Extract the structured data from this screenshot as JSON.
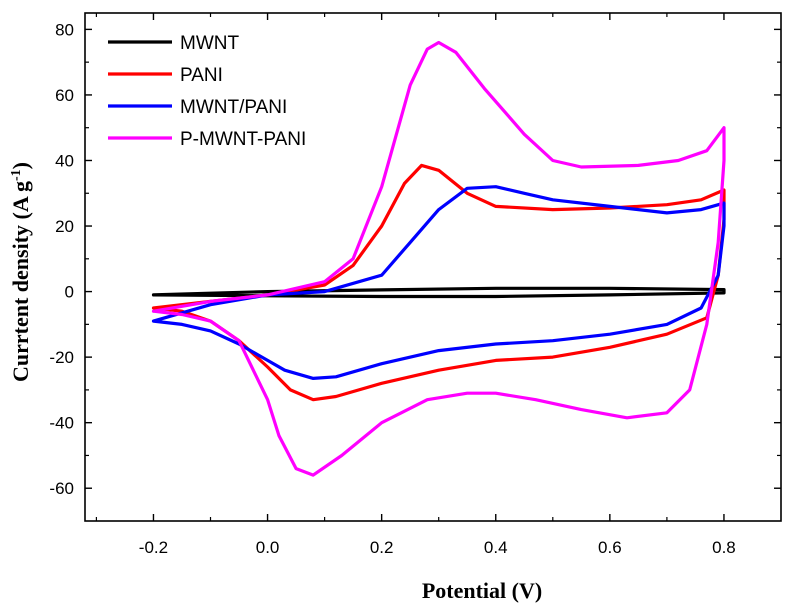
{
  "chart_data": {
    "type": "line",
    "title": "",
    "xlabel": "Potential (V)",
    "ylabel_main": "Currtent density (A g",
    "ylabel_sup": "-1",
    "ylabel_close": ")",
    "xlim": [
      -0.32,
      0.9
    ],
    "ylim": [
      -70,
      85
    ],
    "xticks": [
      -0.2,
      0.0,
      0.2,
      0.4,
      0.6,
      0.8
    ],
    "xtick_labels": [
      "-0.2",
      "0.0",
      "0.2",
      "0.4",
      "0.6",
      "0.8"
    ],
    "yticks": [
      -60,
      -40,
      -20,
      0,
      20,
      40,
      60,
      80
    ],
    "ytick_labels": [
      "-60",
      "-40",
      "-20",
      "0",
      "20",
      "40",
      "60",
      "80"
    ],
    "grid": false,
    "legend_position": "top-left",
    "series": [
      {
        "name": "MWNT",
        "color": "#000000",
        "points": [
          [
            -0.2,
            -1
          ],
          [
            -0.1,
            -0.5
          ],
          [
            0.0,
            0
          ],
          [
            0.2,
            0.5
          ],
          [
            0.4,
            1
          ],
          [
            0.6,
            1
          ],
          [
            0.8,
            0.6
          ],
          [
            0.8,
            -0.4
          ],
          [
            0.6,
            -1
          ],
          [
            0.4,
            -1.5
          ],
          [
            0.2,
            -1.5
          ],
          [
            0.0,
            -1.3
          ],
          [
            -0.2,
            -1
          ]
        ]
      },
      {
        "name": "PANI",
        "color": "#ff0000",
        "points": [
          [
            -0.2,
            -5
          ],
          [
            -0.1,
            -3
          ],
          [
            0.0,
            -1
          ],
          [
            0.1,
            2
          ],
          [
            0.15,
            8
          ],
          [
            0.2,
            20
          ],
          [
            0.24,
            33
          ],
          [
            0.27,
            38.5
          ],
          [
            0.3,
            37
          ],
          [
            0.35,
            30
          ],
          [
            0.4,
            26
          ],
          [
            0.5,
            25
          ],
          [
            0.6,
            25.5
          ],
          [
            0.7,
            26.5
          ],
          [
            0.76,
            28
          ],
          [
            0.8,
            31
          ],
          [
            0.8,
            22
          ],
          [
            0.79,
            5
          ],
          [
            0.77,
            -8
          ],
          [
            0.7,
            -13
          ],
          [
            0.6,
            -17
          ],
          [
            0.5,
            -20
          ],
          [
            0.4,
            -21
          ],
          [
            0.3,
            -24
          ],
          [
            0.2,
            -28
          ],
          [
            0.12,
            -32
          ],
          [
            0.08,
            -33
          ],
          [
            0.04,
            -30
          ],
          [
            0.0,
            -23
          ],
          [
            -0.05,
            -15
          ],
          [
            -0.1,
            -9
          ],
          [
            -0.15,
            -6
          ],
          [
            -0.2,
            -5
          ]
        ]
      },
      {
        "name": "MWNT/PANI",
        "color": "#0000ff",
        "points": [
          [
            -0.2,
            -9
          ],
          [
            -0.1,
            -4
          ],
          [
            0.0,
            -1
          ],
          [
            0.1,
            0
          ],
          [
            0.2,
            5
          ],
          [
            0.25,
            15
          ],
          [
            0.3,
            25
          ],
          [
            0.35,
            31.5
          ],
          [
            0.4,
            32
          ],
          [
            0.45,
            30
          ],
          [
            0.5,
            28
          ],
          [
            0.6,
            26
          ],
          [
            0.7,
            24
          ],
          [
            0.76,
            25
          ],
          [
            0.8,
            27
          ],
          [
            0.8,
            20
          ],
          [
            0.79,
            5
          ],
          [
            0.76,
            -5
          ],
          [
            0.7,
            -10
          ],
          [
            0.6,
            -13
          ],
          [
            0.5,
            -15
          ],
          [
            0.4,
            -16
          ],
          [
            0.3,
            -18
          ],
          [
            0.2,
            -22
          ],
          [
            0.12,
            -26
          ],
          [
            0.08,
            -26.5
          ],
          [
            0.03,
            -24
          ],
          [
            0.0,
            -21
          ],
          [
            -0.05,
            -16
          ],
          [
            -0.1,
            -12
          ],
          [
            -0.15,
            -10
          ],
          [
            -0.2,
            -9
          ]
        ]
      },
      {
        "name": "P-MWNT-PANI",
        "color": "#ff00ff",
        "points": [
          [
            -0.2,
            -6
          ],
          [
            -0.1,
            -3
          ],
          [
            0.0,
            -1
          ],
          [
            0.1,
            3
          ],
          [
            0.15,
            10
          ],
          [
            0.2,
            32
          ],
          [
            0.25,
            63
          ],
          [
            0.28,
            74
          ],
          [
            0.3,
            76
          ],
          [
            0.33,
            73
          ],
          [
            0.38,
            62
          ],
          [
            0.45,
            48
          ],
          [
            0.5,
            40
          ],
          [
            0.55,
            38
          ],
          [
            0.65,
            38.5
          ],
          [
            0.72,
            40
          ],
          [
            0.77,
            43
          ],
          [
            0.8,
            50
          ],
          [
            0.8,
            40
          ],
          [
            0.79,
            15
          ],
          [
            0.77,
            -10
          ],
          [
            0.74,
            -30
          ],
          [
            0.7,
            -37
          ],
          [
            0.63,
            -38.5
          ],
          [
            0.55,
            -36
          ],
          [
            0.47,
            -33
          ],
          [
            0.4,
            -31
          ],
          [
            0.35,
            -31
          ],
          [
            0.28,
            -33
          ],
          [
            0.2,
            -40
          ],
          [
            0.13,
            -50
          ],
          [
            0.08,
            -56
          ],
          [
            0.05,
            -54
          ],
          [
            0.02,
            -44
          ],
          [
            0.0,
            -33
          ],
          [
            -0.05,
            -15
          ],
          [
            -0.1,
            -9
          ],
          [
            -0.15,
            -7
          ],
          [
            -0.2,
            -6
          ]
        ]
      }
    ]
  }
}
